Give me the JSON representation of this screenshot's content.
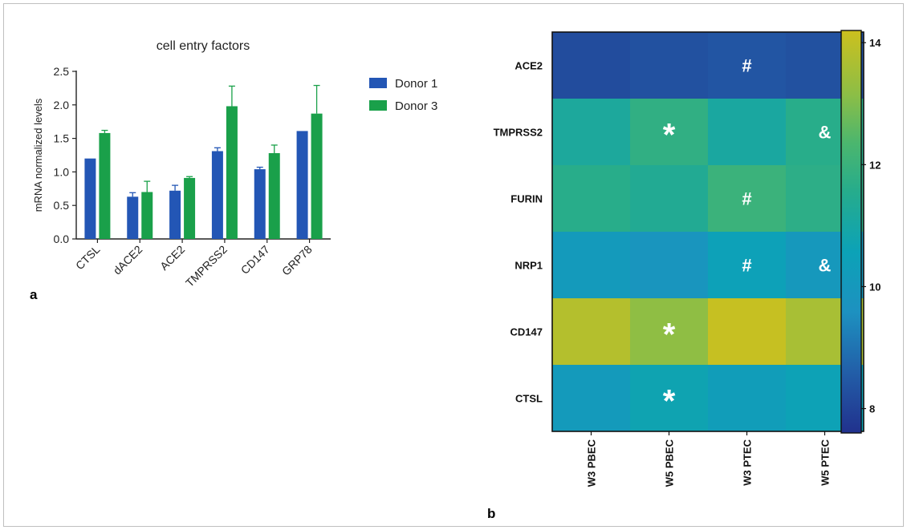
{
  "panel_a_label": "a",
  "panel_b_label": "b",
  "chart_data": [
    {
      "type": "bar",
      "title": "cell entry factors",
      "xlabel": "",
      "ylabel": "mRNA normalized levels",
      "ylim": [
        0,
        2.5
      ],
      "yticks": [
        "0.0",
        "0.5",
        "1.0",
        "1.5",
        "2.0",
        "2.5"
      ],
      "categories": [
        "CTSL",
        "dACE2",
        "ACE2",
        "TMPRSS2",
        "CD147",
        "GRP78"
      ],
      "series": [
        {
          "name": "Donor 1",
          "color": "#2356b5",
          "values": [
            1.2,
            0.63,
            0.72,
            1.31,
            1.04,
            1.61
          ],
          "errors": [
            0.0,
            0.06,
            0.08,
            0.05,
            0.03,
            0.0
          ]
        },
        {
          "name": "Donor 3",
          "color": "#1aa04a",
          "values": [
            1.58,
            0.7,
            0.91,
            1.98,
            1.28,
            1.87
          ],
          "errors": [
            0.04,
            0.16,
            0.02,
            0.3,
            0.12,
            0.42
          ]
        }
      ],
      "legend_position": "right"
    },
    {
      "type": "heatmap",
      "rows": [
        "ACE2",
        "TMPRSS2",
        "FURIN",
        "NRP1",
        "CD147",
        "CTSL"
      ],
      "columns": [
        "W3 PBEC",
        "W5 PBEC",
        "W3 PTEC",
        "W5 PTEC"
      ],
      "values": [
        [
          8.2,
          8.3,
          8.4,
          8.3
        ],
        [
          11.2,
          11.8,
          11.1,
          11.6
        ],
        [
          11.6,
          11.4,
          12.0,
          11.7
        ],
        [
          10.1,
          9.8,
          10.5,
          10.0
        ],
        [
          13.8,
          13.2,
          14.1,
          13.6
        ],
        [
          10.1,
          10.7,
          10.3,
          10.6
        ]
      ],
      "markers": [
        [
          "",
          "",
          "#",
          ""
        ],
        [
          "",
          "*",
          "",
          "&"
        ],
        [
          "",
          "",
          "#",
          ""
        ],
        [
          "",
          "",
          "#",
          "&"
        ],
        [
          "",
          "*",
          "",
          ""
        ],
        [
          "",
          "*",
          "",
          ""
        ]
      ],
      "colorbar_range": [
        7.6,
        14.2
      ],
      "colorbar_ticks": [
        8,
        10,
        12,
        14
      ],
      "colormap": "viridis"
    }
  ]
}
